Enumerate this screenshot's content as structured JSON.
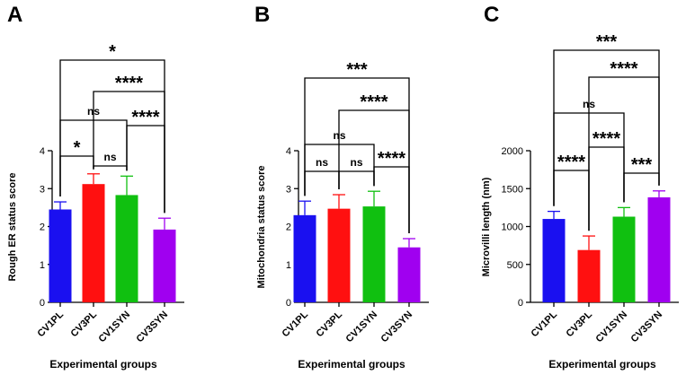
{
  "chart_data": [
    {
      "type": "bar",
      "panel": "A",
      "categories": [
        "CV1PL",
        "CV3PL",
        "CV1SYN",
        "CV3SYN"
      ],
      "values": [
        2.45,
        3.12,
        2.83,
        1.92
      ],
      "errors": [
        0.2,
        0.27,
        0.5,
        0.3
      ],
      "colors": [
        "#1a10f0",
        "#ff1010",
        "#10c010",
        "#a000f0"
      ],
      "xlabel": "Experimental groups",
      "ylabel": "Rough ER status score",
      "ylim": [
        0,
        4
      ],
      "yticks": [
        "0",
        "1",
        "2",
        "3",
        "4"
      ],
      "comparisons": [
        {
          "from": 0,
          "to": 3,
          "label": "*"
        },
        {
          "from": 1,
          "to": 3,
          "label": "****"
        },
        {
          "from": 0,
          "to": 2,
          "label": "ns"
        },
        {
          "from": 2,
          "to": 3,
          "label": "****"
        },
        {
          "from": 0,
          "to": 1,
          "label": "*"
        },
        {
          "from": 1,
          "to": 2,
          "label": "ns"
        }
      ]
    },
    {
      "type": "bar",
      "panel": "B",
      "categories": [
        "CV1PL",
        "CV3PL",
        "CV1SYN",
        "CV3SYN"
      ],
      "values": [
        2.3,
        2.47,
        2.53,
        1.45
      ],
      "errors": [
        0.37,
        0.37,
        0.4,
        0.23
      ],
      "colors": [
        "#1a10f0",
        "#ff1010",
        "#10c010",
        "#a000f0"
      ],
      "xlabel": "Experimental groups",
      "ylabel": "Mitochondria status score",
      "ylim": [
        0,
        4
      ],
      "yticks": [
        "0",
        "1",
        "2",
        "3",
        "4"
      ],
      "comparisons": [
        {
          "from": 0,
          "to": 3,
          "label": "***"
        },
        {
          "from": 1,
          "to": 3,
          "label": "****"
        },
        {
          "from": 0,
          "to": 2,
          "label": "ns"
        },
        {
          "from": 2,
          "to": 3,
          "label": "****"
        },
        {
          "from": 0,
          "to": 1,
          "label": "ns"
        },
        {
          "from": 1,
          "to": 2,
          "label": "ns"
        }
      ]
    },
    {
      "type": "bar",
      "panel": "C",
      "categories": [
        "CV1PL",
        "CV3PL",
        "CV1SYN",
        "CV3SYN"
      ],
      "values": [
        1100,
        690,
        1130,
        1385
      ],
      "errors": [
        100,
        185,
        120,
        85
      ],
      "colors": [
        "#1a10f0",
        "#ff1010",
        "#10c010",
        "#a000f0"
      ],
      "xlabel": "Experimental groups",
      "ylabel": "Microvilli length (nm)",
      "ylim": [
        0,
        2000
      ],
      "yticks": [
        "0",
        "500",
        "1000",
        "1500",
        "2000"
      ],
      "comparisons": [
        {
          "from": 0,
          "to": 3,
          "label": "***"
        },
        {
          "from": 1,
          "to": 3,
          "label": "****"
        },
        {
          "from": 0,
          "to": 2,
          "label": "ns"
        },
        {
          "from": 1,
          "to": 2,
          "label": "****"
        },
        {
          "from": 0,
          "to": 1,
          "label": "****"
        },
        {
          "from": 2,
          "to": 3,
          "label": "***"
        }
      ]
    }
  ]
}
